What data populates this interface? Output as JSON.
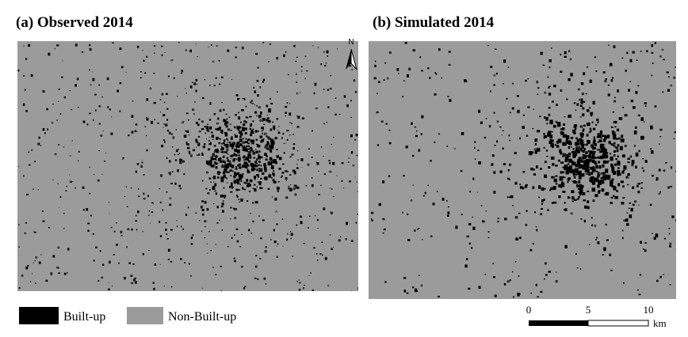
{
  "panels": [
    {
      "title": "(a) Observed 2014"
    },
    {
      "title": "(b) Simulated 2014"
    }
  ],
  "north_arrow": {
    "label": "N"
  },
  "legend": {
    "items": [
      {
        "label": "Built-up"
      },
      {
        "label": "Non-Built-up"
      }
    ]
  },
  "scale_bar": {
    "ticks": [
      "0",
      "5",
      "10"
    ],
    "unit": "km"
  }
}
